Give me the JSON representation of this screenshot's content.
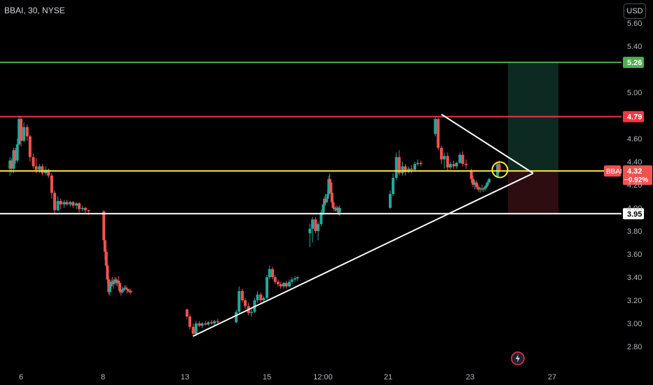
{
  "header": {
    "symbol_title": "BBAI, 30, NYSE",
    "currency": "USD"
  },
  "colors": {
    "up": "#26a69a",
    "down": "#ef5350",
    "support": "#ffffff",
    "resistance": "#f23645",
    "target": "#4caf50",
    "last": "#ffeb3b"
  },
  "chart_data": {
    "type": "candlestick",
    "symbol": "BBAI",
    "interval": "30",
    "exchange": "NYSE",
    "y_ticks": [
      "5.60",
      "5.40",
      "5.26",
      "5.00",
      "4.79",
      "4.60",
      "4.40",
      "4.32",
      "4.20",
      "4.00",
      "3.95",
      "3.80",
      "3.60",
      "3.40",
      "3.20",
      "3.00",
      "2.80"
    ],
    "x_ticks": [
      "6",
      "8",
      "13",
      "15",
      "12:00",
      "21",
      "23",
      "27"
    ],
    "levels": [
      {
        "name": "target",
        "price": 5.26,
        "label": "5.26",
        "color": "#4caf50"
      },
      {
        "name": "resistance",
        "price": 4.79,
        "label": "4.79",
        "color": "#f23645"
      },
      {
        "name": "last-price",
        "price": 4.32,
        "label": "4.32",
        "color": "#ffeb3b"
      },
      {
        "name": "support",
        "price": 3.95,
        "label": "3.95",
        "color": "#ffffff"
      }
    ],
    "last_price": {
      "symbol": "BBAI",
      "price": "4.32",
      "change": "−0.92%"
    },
    "trendlines": [
      {
        "name": "upper-trendline",
        "from": [
          22.3,
          4.81
        ],
        "to": [
          25.9,
          4.3
        ]
      },
      {
        "name": "lower-trendline",
        "from": [
          13.2,
          2.89
        ],
        "to": [
          25.9,
          4.3
        ]
      }
    ],
    "position": {
      "entry": 4.32,
      "target": 5.26,
      "stop": 3.95,
      "from": 25.0,
      "to": 25.6
    },
    "candles": [
      [
        5.55,
        4.34,
        4.44,
        4.28,
        4.41
      ],
      [
        5.62,
        4.41,
        4.43,
        4.3,
        4.34
      ],
      [
        5.7,
        4.34,
        4.52,
        4.3,
        4.5
      ],
      [
        5.77,
        4.5,
        4.52,
        4.38,
        4.41
      ],
      [
        5.85,
        4.41,
        4.6,
        4.39,
        4.55
      ],
      [
        5.92,
        4.55,
        4.8,
        4.54,
        4.77
      ],
      [
        6.0,
        4.77,
        4.79,
        4.53,
        4.58
      ],
      [
        6.07,
        4.58,
        4.74,
        4.57,
        4.7
      ],
      [
        6.15,
        4.7,
        4.72,
        4.58,
        4.62
      ],
      [
        6.22,
        4.62,
        4.63,
        4.4,
        4.44
      ],
      [
        6.3,
        4.44,
        4.47,
        4.34,
        4.36
      ],
      [
        6.37,
        4.36,
        4.43,
        4.3,
        4.33
      ],
      [
        6.45,
        4.33,
        4.38,
        4.3,
        4.36
      ],
      [
        6.52,
        4.36,
        4.38,
        4.28,
        4.3
      ],
      [
        6.6,
        4.3,
        4.36,
        4.28,
        4.33
      ],
      [
        6.67,
        4.33,
        4.34,
        4.26,
        4.28
      ],
      [
        6.75,
        4.28,
        4.3,
        4.08,
        4.13
      ],
      [
        6.82,
        4.13,
        4.15,
        3.95,
        3.98
      ],
      [
        6.9,
        3.98,
        4.1,
        3.97,
        4.06
      ],
      [
        6.97,
        4.06,
        4.08,
        3.99,
        4.03
      ],
      [
        7.05,
        4.03,
        4.07,
        4.0,
        4.05
      ],
      [
        7.12,
        4.05,
        4.07,
        4.02,
        4.03
      ],
      [
        7.2,
        4.03,
        4.06,
        4.01,
        4.05
      ],
      [
        7.27,
        4.05,
        4.06,
        4.0,
        4.02
      ],
      [
        7.35,
        4.02,
        4.05,
        3.99,
        4.04
      ],
      [
        7.42,
        4.04,
        4.05,
        3.96,
        3.99
      ],
      [
        7.5,
        3.99,
        4.02,
        3.97,
        4.0
      ],
      [
        7.57,
        4.0,
        4.01,
        3.96,
        3.98
      ],
      [
        7.65,
        3.98,
        3.98,
        3.94,
        3.97
      ],
      [
        8.05,
        3.97,
        3.98,
        3.68,
        3.72
      ],
      [
        8.12,
        3.72,
        3.74,
        3.55,
        3.62
      ],
      [
        8.2,
        3.62,
        3.64,
        3.48,
        3.5
      ],
      [
        8.27,
        3.5,
        3.52,
        3.35,
        3.38
      ],
      [
        8.35,
        3.38,
        3.4,
        3.25,
        3.27
      ],
      [
        8.42,
        3.27,
        3.34,
        3.24,
        3.32
      ],
      [
        8.5,
        3.32,
        3.38,
        3.3,
        3.36
      ],
      [
        8.57,
        3.36,
        3.4,
        3.32,
        3.34
      ],
      [
        8.65,
        3.34,
        3.38,
        3.3,
        3.37
      ],
      [
        8.72,
        3.37,
        3.4,
        3.35,
        3.38
      ],
      [
        8.8,
        3.38,
        3.4,
        3.33,
        3.35
      ],
      [
        8.87,
        3.35,
        3.38,
        3.32,
        3.37
      ],
      [
        8.95,
        3.37,
        3.41,
        3.34,
        3.35
      ],
      [
        9.02,
        3.35,
        3.36,
        3.26,
        3.28
      ],
      [
        9.1,
        3.28,
        3.3,
        3.24,
        3.27
      ],
      [
        9.17,
        3.27,
        3.32,
        3.26,
        3.29
      ],
      [
        9.25,
        3.29,
        3.31,
        3.27,
        3.3
      ],
      [
        9.32,
        3.3,
        3.33,
        3.28,
        3.31
      ],
      [
        9.4,
        3.31,
        3.33,
        3.29,
        3.3
      ],
      [
        9.47,
        3.3,
        3.31,
        3.26,
        3.29
      ],
      [
        9.55,
        3.29,
        3.3,
        3.27,
        3.28
      ],
      [
        9.62,
        3.28,
        3.3,
        3.26,
        3.28
      ],
      [
        9.7,
        3.28,
        3.3,
        3.25,
        3.27
      ],
      [
        13.05,
        3.12,
        3.13,
        3.04,
        3.06
      ],
      [
        13.12,
        3.06,
        3.08,
        2.95,
        2.97
      ],
      [
        13.2,
        2.97,
        3.0,
        2.88,
        2.91
      ],
      [
        13.27,
        2.91,
        3.02,
        2.89,
        3.0
      ],
      [
        13.35,
        3.0,
        3.02,
        2.97,
        2.98
      ],
      [
        13.42,
        2.98,
        3.01,
        2.96,
        3.0
      ],
      [
        13.5,
        3.0,
        3.02,
        2.98,
        2.99
      ],
      [
        13.57,
        2.99,
        3.02,
        2.98,
        3.01
      ],
      [
        13.65,
        3.01,
        3.03,
        2.99,
        3.0
      ],
      [
        13.72,
        3.0,
        3.03,
        2.98,
        3.02
      ],
      [
        13.8,
        3.02,
        3.04,
        3.0,
        3.01
      ],
      [
        14.25,
        3.01,
        3.12,
        3.0,
        3.1
      ],
      [
        14.32,
        3.1,
        3.32,
        3.09,
        3.28
      ],
      [
        14.4,
        3.28,
        3.3,
        3.18,
        3.2
      ],
      [
        14.47,
        3.2,
        3.22,
        3.12,
        3.15
      ],
      [
        14.55,
        3.15,
        3.18,
        3.07,
        3.09
      ],
      [
        14.62,
        3.09,
        3.12,
        3.06,
        3.1
      ],
      [
        14.7,
        3.1,
        3.22,
        3.09,
        3.2
      ],
      [
        14.77,
        3.2,
        3.28,
        3.18,
        3.25
      ],
      [
        14.85,
        3.25,
        3.27,
        3.18,
        3.2
      ],
      [
        14.92,
        3.2,
        3.24,
        3.18,
        3.22
      ],
      [
        15.0,
        3.22,
        3.42,
        3.21,
        3.4
      ],
      [
        15.07,
        3.4,
        3.5,
        3.38,
        3.47
      ],
      [
        15.15,
        3.47,
        3.49,
        3.38,
        3.4
      ],
      [
        15.22,
        3.4,
        3.42,
        3.34,
        3.36
      ],
      [
        15.3,
        3.36,
        3.38,
        3.32,
        3.34
      ],
      [
        15.37,
        3.34,
        3.36,
        3.3,
        3.32
      ],
      [
        15.45,
        3.32,
        3.36,
        3.3,
        3.35
      ],
      [
        15.52,
        3.35,
        3.37,
        3.3,
        3.32
      ],
      [
        15.6,
        3.32,
        3.38,
        3.31,
        3.36
      ],
      [
        15.67,
        3.36,
        3.4,
        3.34,
        3.38
      ],
      [
        15.75,
        3.38,
        3.41,
        3.36,
        3.39
      ],
      [
        15.82,
        3.39,
        3.41,
        3.37,
        3.4
      ],
      [
        16.15,
        3.78,
        3.86,
        3.66,
        3.82
      ],
      [
        16.22,
        3.82,
        3.92,
        3.7,
        3.9
      ],
      [
        16.3,
        3.9,
        3.92,
        3.78,
        3.8
      ],
      [
        16.37,
        3.8,
        3.88,
        3.72,
        3.86
      ],
      [
        16.45,
        3.86,
        3.98,
        3.84,
        3.96
      ],
      [
        16.52,
        3.96,
        4.05,
        3.94,
        4.03
      ],
      [
        16.6,
        4.03,
        4.1,
        4.0,
        4.08
      ],
      [
        16.67,
        4.08,
        4.12,
        4.02,
        4.05
      ],
      [
        16.75,
        4.05,
        4.1,
        4.04,
        4.08
      ],
      [
        16.82,
        4.08,
        4.15,
        4.06,
        4.12
      ],
      [
        16.9,
        4.12,
        4.28,
        4.1,
        4.25
      ],
      [
        16.97,
        4.25,
        4.3,
        4.19,
        4.22
      ],
      [
        17.05,
        4.22,
        4.24,
        4.1,
        4.13
      ],
      [
        17.12,
        4.13,
        4.15,
        4.03,
        4.05
      ],
      [
        17.2,
        4.05,
        4.08,
        3.99,
        4.0
      ],
      [
        17.27,
        4.0,
        4.02,
        3.97,
        3.99
      ],
      [
        17.35,
        3.99,
        4.01,
        3.97,
        4.0
      ],
      [
        17.42,
        4.0,
        4.02,
        3.97,
        3.98
      ],
      [
        17.5,
        3.98,
        4.01,
        3.96,
        4.0
      ],
      [
        17.57,
        4.0,
        4.01,
        3.94,
        3.96
      ],
      [
        17.65,
        3.96,
        4.02,
        3.93,
        4.0
      ],
      [
        21.05,
        4.0,
        4.15,
        3.99,
        4.12
      ],
      [
        21.12,
        4.12,
        4.3,
        4.1,
        4.26
      ],
      [
        21.2,
        4.26,
        4.48,
        4.24,
        4.44
      ],
      [
        21.27,
        4.44,
        4.5,
        4.28,
        4.3
      ],
      [
        21.35,
        4.3,
        4.4,
        4.28,
        4.36
      ],
      [
        21.42,
        4.36,
        4.38,
        4.28,
        4.31
      ],
      [
        21.5,
        4.31,
        4.36,
        4.3,
        4.34
      ],
      [
        21.57,
        4.34,
        4.37,
        4.3,
        4.33
      ],
      [
        21.65,
        4.33,
        4.4,
        4.32,
        4.38
      ],
      [
        21.72,
        4.38,
        4.42,
        4.36,
        4.39
      ],
      [
        21.8,
        4.39,
        4.41,
        4.36,
        4.38
      ],
      [
        22.15,
        4.64,
        4.79,
        4.62,
        4.77
      ],
      [
        22.22,
        4.77,
        4.78,
        4.5,
        4.52
      ],
      [
        22.3,
        4.52,
        4.54,
        4.38,
        4.42
      ],
      [
        22.37,
        4.42,
        4.48,
        4.34,
        4.45
      ],
      [
        22.45,
        4.45,
        4.48,
        4.32,
        4.35
      ],
      [
        22.52,
        4.35,
        4.4,
        4.33,
        4.38
      ],
      [
        22.6,
        4.38,
        4.41,
        4.34,
        4.36
      ],
      [
        22.67,
        4.36,
        4.4,
        4.34,
        4.39
      ],
      [
        22.75,
        4.39,
        4.48,
        4.38,
        4.46
      ],
      [
        22.82,
        4.46,
        4.49,
        4.36,
        4.38
      ],
      [
        22.9,
        4.38,
        4.42,
        4.34,
        4.37
      ],
      [
        23.05,
        4.32,
        4.34,
        4.22,
        4.25
      ],
      [
        23.12,
        4.25,
        4.28,
        4.18,
        4.2
      ],
      [
        23.2,
        4.2,
        4.24,
        4.16,
        4.22
      ],
      [
        23.27,
        4.22,
        4.24,
        4.16,
        4.18
      ],
      [
        23.35,
        4.18,
        4.2,
        4.14,
        4.16
      ],
      [
        23.42,
        4.16,
        4.18,
        4.13,
        4.17
      ],
      [
        23.5,
        4.17,
        4.2,
        4.14,
        4.16
      ],
      [
        23.57,
        4.16,
        4.18,
        4.14,
        4.17
      ],
      [
        23.65,
        4.17,
        4.2,
        4.15,
        4.19
      ],
      [
        23.72,
        4.19,
        4.23,
        4.18,
        4.22
      ],
      [
        23.8,
        4.22,
        4.26,
        4.21,
        4.25
      ],
      [
        24.15,
        4.27,
        4.4,
        4.26,
        4.38
      ],
      [
        24.22,
        4.38,
        4.41,
        4.3,
        4.32
      ]
    ]
  }
}
